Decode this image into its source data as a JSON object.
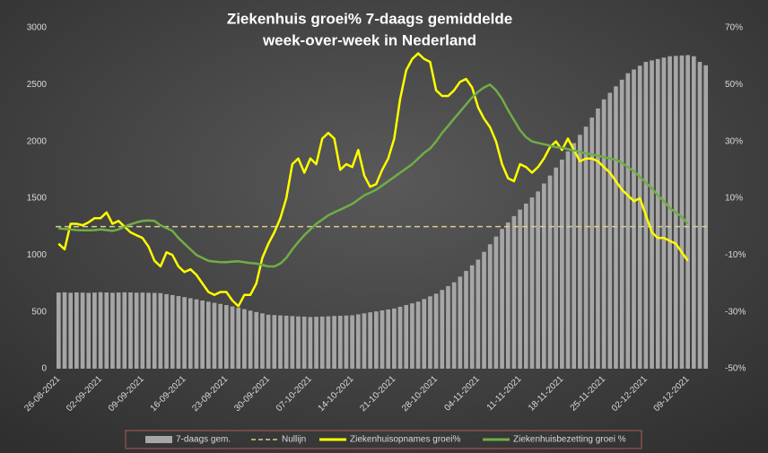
{
  "chart_data": {
    "type": "bar-line",
    "title": [
      "Ziekenhuis groei% 7-daags gemiddelde",
      "week-over-week in Nederland"
    ],
    "categories": [
      "26-08-2021",
      null,
      null,
      null,
      null,
      null,
      null,
      "02-09-2021",
      null,
      null,
      null,
      null,
      null,
      null,
      "09-09-2021",
      null,
      null,
      null,
      null,
      null,
      null,
      "16-09-2021",
      null,
      null,
      null,
      null,
      null,
      null,
      "23-09-2021",
      null,
      null,
      null,
      null,
      null,
      null,
      "30-09-2021",
      null,
      null,
      null,
      null,
      null,
      null,
      "07-10-2021",
      null,
      null,
      null,
      null,
      null,
      null,
      "14-10-2021",
      null,
      null,
      null,
      null,
      null,
      null,
      "21-10-2021",
      null,
      null,
      null,
      null,
      null,
      null,
      "28-10-2021",
      null,
      null,
      null,
      null,
      null,
      null,
      "04-11-2021",
      null,
      null,
      null,
      null,
      null,
      null,
      "11-11-2021",
      null,
      null,
      null,
      null,
      null,
      null,
      "18-11-2021",
      null,
      null,
      null,
      null,
      null,
      null,
      "25-11-2021",
      null,
      null,
      null,
      null,
      null,
      null,
      "02-12-2021",
      null,
      null,
      null,
      null,
      null,
      null,
      "09-12-2021",
      null,
      null,
      null
    ],
    "series": [
      {
        "name": "7-daags gem.",
        "type": "bar",
        "color": "#a6a6a6",
        "axis": "y",
        "values": [
          670,
          672,
          668,
          671,
          669,
          667,
          670,
          673,
          671,
          668,
          670,
          672,
          671,
          669,
          670,
          668,
          667,
          665,
          656,
          648,
          639,
          630,
          620,
          610,
          600,
          590,
          580,
          570,
          560,
          548,
          536,
          524,
          511,
          499,
          487,
          475,
          472,
          469,
          466,
          463,
          460,
          458,
          455,
          457,
          459,
          461,
          464,
          466,
          468,
          470,
          478,
          487,
          496,
          504,
          513,
          521,
          530,
          545,
          560,
          575,
          590,
          613,
          637,
          660,
          693,
          727,
          760,
          810,
          860,
          910,
          960,
          1028,
          1095,
          1163,
          1230,
          1287,
          1343,
          1400,
          1453,
          1507,
          1560,
          1630,
          1700,
          1770,
          1840,
          1913,
          1985,
          2058,
          2130,
          2210,
          2290,
          2370,
          2428,
          2485,
          2543,
          2600,
          2633,
          2667,
          2700,
          2713,
          2725,
          2738,
          2750,
          2753,
          2757,
          2760,
          2750,
          2700,
          2670
        ]
      },
      {
        "name": "Ziekenhuisopnames groei%",
        "type": "line",
        "color": "#ffff00",
        "axis": "y2",
        "values": [
          -6,
          -8,
          1,
          1,
          0.5,
          1.5,
          3,
          3,
          5,
          1,
          2,
          0,
          -2,
          -3,
          -4,
          -7,
          -12,
          -14,
          -9,
          -10,
          -14,
          -16,
          -15,
          -17,
          -20,
          -23,
          -24,
          -23,
          -23,
          -26,
          -28,
          -24,
          -24,
          -20,
          -11,
          -6,
          -2,
          3,
          10,
          22,
          24,
          19,
          24,
          22,
          31,
          33,
          31,
          20,
          22,
          21,
          27,
          18,
          14,
          15,
          20,
          24,
          31,
          45,
          55,
          59,
          61,
          59,
          58,
          48,
          46,
          46,
          48,
          51,
          52,
          49,
          42,
          38,
          35,
          30,
          22,
          17,
          16,
          22,
          21,
          19,
          21,
          24,
          28,
          30,
          27,
          31,
          27,
          23,
          24,
          24,
          23,
          21,
          19,
          16,
          13,
          11,
          9,
          10,
          4,
          -2,
          -4,
          -4,
          -5,
          -6,
          -9,
          -12,
          null,
          null,
          null
        ]
      },
      {
        "name": "Ziekenhuisbezetting groei %",
        "type": "line",
        "color": "#70ad47",
        "axis": "y2",
        "values": [
          -0.6,
          -0.8,
          -1,
          -1.2,
          -1.3,
          -1.3,
          -1.2,
          -1,
          -1.2,
          -1.5,
          -1,
          0,
          0.8,
          1.5,
          2,
          2.2,
          2,
          0.5,
          -0.5,
          -1.5,
          -4,
          -6,
          -8,
          -10,
          -11,
          -12,
          -12.3,
          -12.5,
          -12.5,
          -12.3,
          -12.2,
          -12.5,
          -12.8,
          -13,
          -13.5,
          -14,
          -14,
          -13,
          -11,
          -8,
          -5.4,
          -3,
          -1,
          1,
          2.5,
          4,
          5,
          6,
          7,
          8,
          9.5,
          11,
          12,
          13,
          14.5,
          16,
          17.5,
          19,
          20.5,
          22,
          24,
          26,
          27.5,
          30,
          33,
          35.5,
          38,
          40.5,
          43,
          45.5,
          47.5,
          49,
          50,
          48,
          45,
          41,
          37.5,
          34,
          31.5,
          30,
          29.5,
          29,
          28.5,
          28,
          27.8,
          27.3,
          26.8,
          26.3,
          25.8,
          25.4,
          25,
          24.5,
          24,
          23.5,
          22.5,
          21,
          19.5,
          17.5,
          15.5,
          13.5,
          11,
          9,
          6.5,
          5,
          3.5,
          1,
          null,
          null,
          null
        ]
      }
    ],
    "reference_line": {
      "name": "Nullijn",
      "value": 0,
      "axis": "y2",
      "color": "#d9cc8c"
    },
    "ylim": [
      0,
      3000
    ],
    "yticks": [
      0,
      500,
      1000,
      1500,
      2000,
      2500,
      3000
    ],
    "y2lim": [
      -50,
      70
    ],
    "y2ticks": [
      {
        "value": -50,
        "label": "-50%"
      },
      {
        "value": -30,
        "label": "-30%"
      },
      {
        "value": -10,
        "label": "-10%"
      },
      {
        "value": 10,
        "label": "10%"
      },
      {
        "value": 30,
        "label": "30%"
      },
      {
        "value": 50,
        "label": "50%"
      },
      {
        "value": 70,
        "label": "70%"
      }
    ]
  }
}
